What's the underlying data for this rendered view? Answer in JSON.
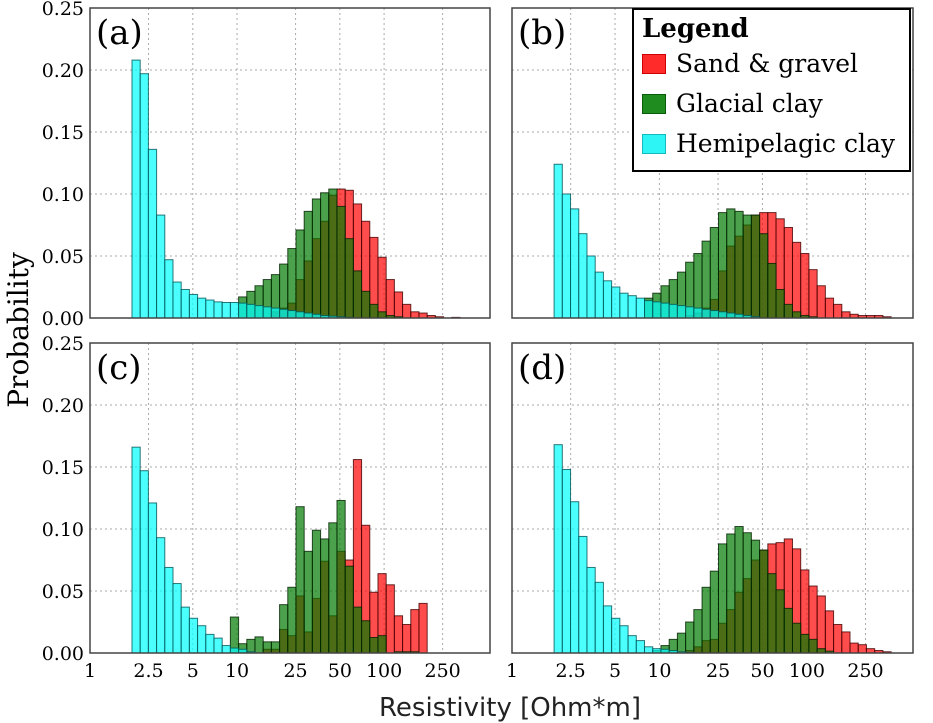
{
  "chart_data": {
    "type": "bar",
    "title": "",
    "xlabel": "Resistivity [Ohm*m]",
    "ylabel": "Probability",
    "xscale": "log",
    "xlim": [
      1,
      525
    ],
    "ylim": [
      0,
      0.25
    ],
    "grid": true,
    "xticks": [
      1,
      2.5,
      5,
      10,
      25,
      50,
      100,
      250
    ],
    "xtick_labels": [
      "1",
      "2.5",
      "5",
      "10",
      "25",
      "50",
      "100",
      "250"
    ],
    "yticks": [
      0,
      0.05,
      0.1,
      0.15,
      0.2,
      0.25
    ],
    "ytick_labels": [
      "0.00",
      "0.05",
      "0.10",
      "0.15",
      "0.20",
      "0.25"
    ],
    "bin_start": 1.93,
    "bin_ratio": 1.137,
    "legend": {
      "title": "Legend",
      "placement": "top-right",
      "entries": [
        {
          "name": "Sand & gravel",
          "color": "#ff2a2a"
        },
        {
          "name": "Glacial clay",
          "color": "#1f8c1f"
        },
        {
          "name": "Hemipelagic clay",
          "color": "#2ef5f5"
        }
      ]
    },
    "panels": [
      {
        "label": "(a)",
        "series": [
          {
            "name": "Sand & gravel",
            "values": [
              0,
              0,
              0,
              0,
              0,
              0,
              0,
              0,
              0,
              0,
              0,
              0,
              0,
              0,
              0,
              0,
              0,
              0.005,
              0.008,
              0.012,
              0.031,
              0.046,
              0.064,
              0.078,
              0.099,
              0.104,
              0.103,
              0.092,
              0.078,
              0.065,
              0.049,
              0.031,
              0.021,
              0.011,
              0.005,
              0.004,
              0.002,
              0.001,
              0,
              0.0005
            ]
          },
          {
            "name": "Glacial clay",
            "values": [
              0,
              0,
              0,
              0,
              0,
              0,
              0,
              0,
              0,
              0,
              0,
              0,
              0,
              0.017,
              0.0215,
              0.026,
              0.031,
              0.035,
              0.0435,
              0.056,
              0.071,
              0.086,
              0.096,
              0.101,
              0.104,
              0.09,
              0.064,
              0.038,
              0.0215,
              0.011,
              0.005,
              0.002,
              0.001
            ]
          },
          {
            "name": "Hemipelagic clay",
            "values": [
              0.208,
              0.197,
              0.136,
              0.083,
              0.047,
              0.029,
              0.023,
              0.019,
              0.016,
              0.0145,
              0.013,
              0.0125,
              0.0125,
              0.012,
              0.011,
              0.01,
              0.009,
              0.008,
              0.007,
              0.006,
              0.005,
              0.004,
              0.003,
              0.002,
              0.0015,
              0.001,
              0.0005
            ]
          }
        ]
      },
      {
        "label": "(b)",
        "series": [
          {
            "name": "Sand & gravel",
            "values": [
              0,
              0,
              0,
              0,
              0,
              0,
              0,
              0,
              0,
              0,
              0,
              0,
              0,
              0,
              0,
              0,
              0.002,
              0.004,
              0.008,
              0.015,
              0.038,
              0.058,
              0.066,
              0.075,
              0.083,
              0.085,
              0.085,
              0.08,
              0.073,
              0.061,
              0.052,
              0.039,
              0.026,
              0.016,
              0.011,
              0.005,
              0.003,
              0.002,
              0.002,
              0.002,
              0.001
            ]
          },
          {
            "name": "Glacial clay",
            "values": [
              0,
              0,
              0,
              0,
              0,
              0,
              0,
              0,
              0,
              0,
              0,
              0.016,
              0.02,
              0.026,
              0.031,
              0.037,
              0.045,
              0.052,
              0.062,
              0.073,
              0.085,
              0.088,
              0.086,
              0.083,
              0.083,
              0.068,
              0.044,
              0.023,
              0.011,
              0.005,
              0.002,
              0.001
            ]
          },
          {
            "name": "Hemipelagic clay",
            "values": [
              0.124,
              0.1,
              0.088,
              0.068,
              0.05,
              0.037,
              0.03,
              0.025,
              0.02,
              0.018,
              0.016,
              0.014,
              0.013,
              0.012,
              0.011,
              0.01,
              0.009,
              0.008,
              0.007,
              0.006,
              0.005,
              0.004,
              0.003,
              0.002,
              0.001
            ]
          }
        ]
      },
      {
        "label": "(c)",
        "series": [
          {
            "name": "Sand & gravel",
            "values": [
              0,
              0,
              0,
              0,
              0,
              0,
              0,
              0,
              0,
              0,
              0,
              0,
              0,
              0,
              0,
              0,
              0.003,
              0.003,
              0.019,
              0.014,
              0.046,
              0.017,
              0.044,
              0.074,
              0.03,
              0.082,
              0.075,
              0.156,
              0.103,
              0.049,
              0.064,
              0.055,
              0.03,
              0.023,
              0.035,
              0.04
            ]
          },
          {
            "name": "Glacial clay",
            "values": [
              0,
              0,
              0,
              0,
              0,
              0,
              0,
              0,
              0,
              0,
              0,
              0,
              0.029,
              0.0075,
              0.011,
              0.013,
              0.009,
              0.009,
              0.039,
              0.053,
              0.118,
              0.082,
              0.099,
              0.092,
              0.105,
              0.123,
              0.07,
              0.037,
              0.026,
              0.0125,
              0.014,
              0,
              0.001,
              0.001,
              0.001
            ]
          },
          {
            "name": "Hemipelagic clay",
            "values": [
              0.166,
              0.147,
              0.121,
              0.093,
              0.069,
              0.056,
              0.037,
              0.028,
              0.022,
              0.015,
              0.012,
              0.006,
              0.004,
              0.003,
              0.001
            ]
          }
        ]
      },
      {
        "label": "(d)",
        "series": [
          {
            "name": "Sand & gravel",
            "values": [
              0,
              0,
              0,
              0,
              0,
              0,
              0,
              0,
              0,
              0,
              0,
              0,
              0,
              0,
              0,
              0,
              0.002,
              0.005,
              0.01,
              0.011,
              0.024,
              0.035,
              0.049,
              0.06,
              0.075,
              0.083,
              0.088,
              0.089,
              0.092,
              0.084,
              0.067,
              0.054,
              0.046,
              0.034,
              0.023,
              0.017,
              0.008,
              0.0067,
              0.0035,
              0.002,
              0.001
            ]
          },
          {
            "name": "Glacial clay",
            "values": [
              0,
              0,
              0,
              0,
              0,
              0,
              0,
              0,
              0,
              0,
              0,
              0,
              0.002,
              0.006,
              0.011,
              0.016,
              0.025,
              0.035,
              0.053,
              0.066,
              0.088,
              0.096,
              0.102,
              0.097,
              0.091,
              0.083,
              0.064,
              0.051,
              0.036,
              0.024,
              0.015,
              0.011,
              0.0035,
              0.0015
            ]
          },
          {
            "name": "Hemipelagic clay",
            "values": [
              0.168,
              0.148,
              0.122,
              0.094,
              0.069,
              0.057,
              0.038,
              0.028,
              0.022,
              0.014,
              0.01,
              0.005,
              0.0035,
              0.003,
              0.002,
              0.001,
              0.0005
            ]
          }
        ]
      }
    ]
  }
}
